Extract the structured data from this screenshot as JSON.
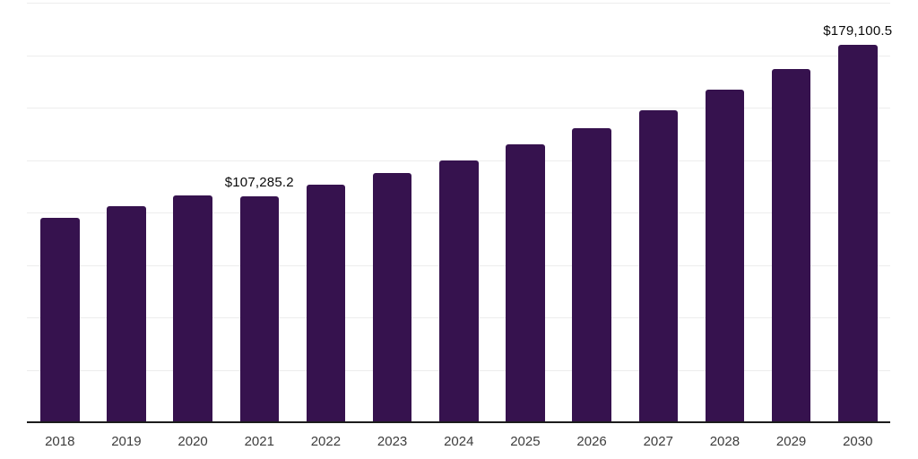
{
  "chart_data": {
    "type": "bar",
    "title": "",
    "xlabel": "",
    "ylabel": "",
    "categories": [
      "2018",
      "2019",
      "2020",
      "2021",
      "2022",
      "2023",
      "2024",
      "2025",
      "2026",
      "2027",
      "2028",
      "2029",
      "2030"
    ],
    "values": [
      96900,
      102600,
      107500,
      107285.2,
      112900,
      118200,
      124400,
      131800,
      139500,
      148100,
      157800,
      167600,
      179100.5
    ],
    "annotations": [
      {
        "index": 3,
        "category": "2021",
        "text": "$107,285.2",
        "value": 107285.2
      },
      {
        "index": 12,
        "category": "2030",
        "text": "$179,100.5",
        "value": 179100.5
      }
    ],
    "ylim": [
      0,
      200000
    ],
    "gridline_step": 25000,
    "grid": "horizontal-only",
    "legend": "none",
    "y_axis_labels_visible": false,
    "colors": {
      "bar": "#36124e",
      "gridline": "#ededed",
      "axis_line": "#1c1c1c",
      "value_label_text": "#0a0a0a",
      "x_tick_text": "#3d3d3d",
      "background": "#ffffff"
    }
  }
}
